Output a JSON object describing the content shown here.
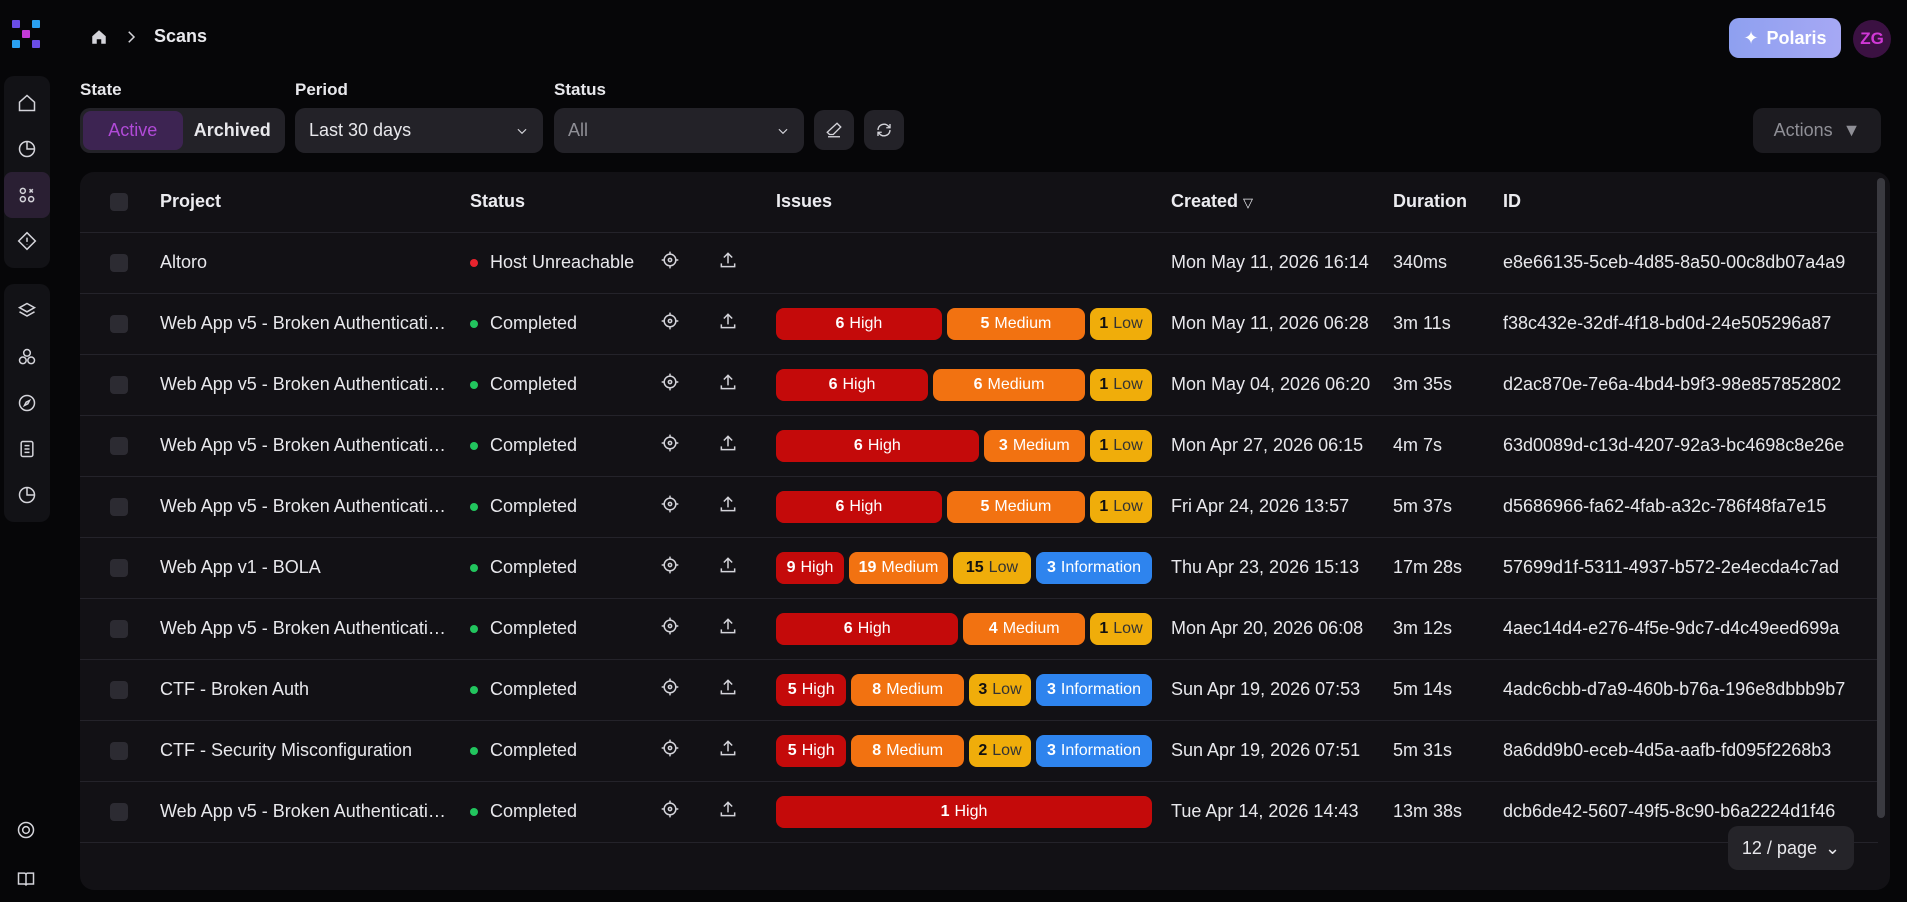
{
  "breadcrumb": {
    "current": "Scans"
  },
  "header": {
    "polaris_label": "Polaris",
    "avatar_initials": "ZG"
  },
  "filters": {
    "state_label": "State",
    "state_options": [
      "Active",
      "Archived"
    ],
    "period_label": "Period",
    "period_value": "Last 30 days",
    "status_label": "Status",
    "status_value": "All",
    "actions_label": "Actions"
  },
  "table": {
    "columns": [
      "Project",
      "Status",
      "Issues",
      "Created",
      "Duration",
      "ID"
    ],
    "rows": [
      {
        "project": "Altoro",
        "status": "Host Unreachable",
        "status_color": "#e8242e",
        "issues": [],
        "created": "Mon May 11, 2026 16:14",
        "duration": "340ms",
        "id": "e8e66135-5ceb-4d85-8a50-00c8db07a4a9"
      },
      {
        "project": "Web App v5 - Broken Authenticati…",
        "status": "Completed",
        "status_color": "#22c55e",
        "issues": [
          {
            "n": "6",
            "label": "High",
            "kind": "high"
          },
          {
            "n": "5",
            "label": "Medium",
            "kind": "medium"
          },
          {
            "n": "1",
            "label": "Low",
            "kind": "low"
          }
        ],
        "created": "Mon May 11, 2026 06:28",
        "duration": "3m 11s",
        "id": "f38c432e-32df-4f18-bd0d-24e505296a87"
      },
      {
        "project": "Web App v5 - Broken Authenticati…",
        "status": "Completed",
        "status_color": "#22c55e",
        "issues": [
          {
            "n": "6",
            "label": "High",
            "kind": "high"
          },
          {
            "n": "6",
            "label": "Medium",
            "kind": "medium"
          },
          {
            "n": "1",
            "label": "Low",
            "kind": "low"
          }
        ],
        "created": "Mon May 04, 2026 06:20",
        "duration": "3m 35s",
        "id": "d2ac870e-7e6a-4bd4-b9f3-98e857852802"
      },
      {
        "project": "Web App v5 - Broken Authenticati…",
        "status": "Completed",
        "status_color": "#22c55e",
        "issues": [
          {
            "n": "6",
            "label": "High",
            "kind": "high"
          },
          {
            "n": "3",
            "label": "Medium",
            "kind": "medium"
          },
          {
            "n": "1",
            "label": "Low",
            "kind": "low"
          }
        ],
        "created": "Mon Apr 27, 2026 06:15",
        "duration": "4m 7s",
        "id": "63d0089d-c13d-4207-92a3-bc4698c8e26e"
      },
      {
        "project": "Web App v5 - Broken Authenticati…",
        "status": "Completed",
        "status_color": "#22c55e",
        "issues": [
          {
            "n": "6",
            "label": "High",
            "kind": "high"
          },
          {
            "n": "5",
            "label": "Medium",
            "kind": "medium"
          },
          {
            "n": "1",
            "label": "Low",
            "kind": "low"
          }
        ],
        "created": "Fri Apr 24, 2026 13:57",
        "duration": "5m 37s",
        "id": "d5686966-fa62-4fab-a32c-786f48fa7e15"
      },
      {
        "project": "Web App v1 - BOLA",
        "status": "Completed",
        "status_color": "#22c55e",
        "issues": [
          {
            "n": "9",
            "label": "High",
            "kind": "high"
          },
          {
            "n": "19",
            "label": "Medium",
            "kind": "medium"
          },
          {
            "n": "15",
            "label": "Low",
            "kind": "low"
          },
          {
            "n": "3",
            "label": "Information",
            "kind": "info"
          }
        ],
        "created": "Thu Apr 23, 2026 15:13",
        "duration": "17m 28s",
        "id": "57699d1f-5311-4937-b572-2e4ecda4c7ad"
      },
      {
        "project": "Web App v5 - Broken Authenticati…",
        "status": "Completed",
        "status_color": "#22c55e",
        "issues": [
          {
            "n": "6",
            "label": "High",
            "kind": "high"
          },
          {
            "n": "4",
            "label": "Medium",
            "kind": "medium"
          },
          {
            "n": "1",
            "label": "Low",
            "kind": "low"
          }
        ],
        "created": "Mon Apr 20, 2026 06:08",
        "duration": "3m 12s",
        "id": "4aec14d4-e276-4f5e-9dc7-d4c49eed699a"
      },
      {
        "project": "CTF - Broken Auth",
        "status": "Completed",
        "status_color": "#22c55e",
        "issues": [
          {
            "n": "5",
            "label": "High",
            "kind": "high"
          },
          {
            "n": "8",
            "label": "Medium",
            "kind": "medium"
          },
          {
            "n": "3",
            "label": "Low",
            "kind": "low"
          },
          {
            "n": "3",
            "label": "Information",
            "kind": "info"
          }
        ],
        "created": "Sun Apr 19, 2026 07:53",
        "duration": "5m 14s",
        "id": "4adc6cbb-d7a9-460b-b76a-196e8dbbb9b7"
      },
      {
        "project": "CTF - Security Misconfiguration",
        "status": "Completed",
        "status_color": "#22c55e",
        "issues": [
          {
            "n": "5",
            "label": "High",
            "kind": "high"
          },
          {
            "n": "8",
            "label": "Medium",
            "kind": "medium"
          },
          {
            "n": "2",
            "label": "Low",
            "kind": "low"
          },
          {
            "n": "3",
            "label": "Information",
            "kind": "info"
          }
        ],
        "created": "Sun Apr 19, 2026 07:51",
        "duration": "5m 31s",
        "id": "8a6dd9b0-eceb-4d5a-aafb-fd095f2268b3"
      },
      {
        "project": "Web App v5 - Broken Authenticati…",
        "status": "Completed",
        "status_color": "#22c55e",
        "issues": [
          {
            "n": "1",
            "label": "High",
            "kind": "high"
          }
        ],
        "created": "Tue Apr 14, 2026 14:43",
        "duration": "13m 38s",
        "id": "dcb6de42-5607-49f5-8c90-b6a2224d1f46"
      }
    ]
  },
  "pagination": {
    "page_size": "12 / page"
  }
}
